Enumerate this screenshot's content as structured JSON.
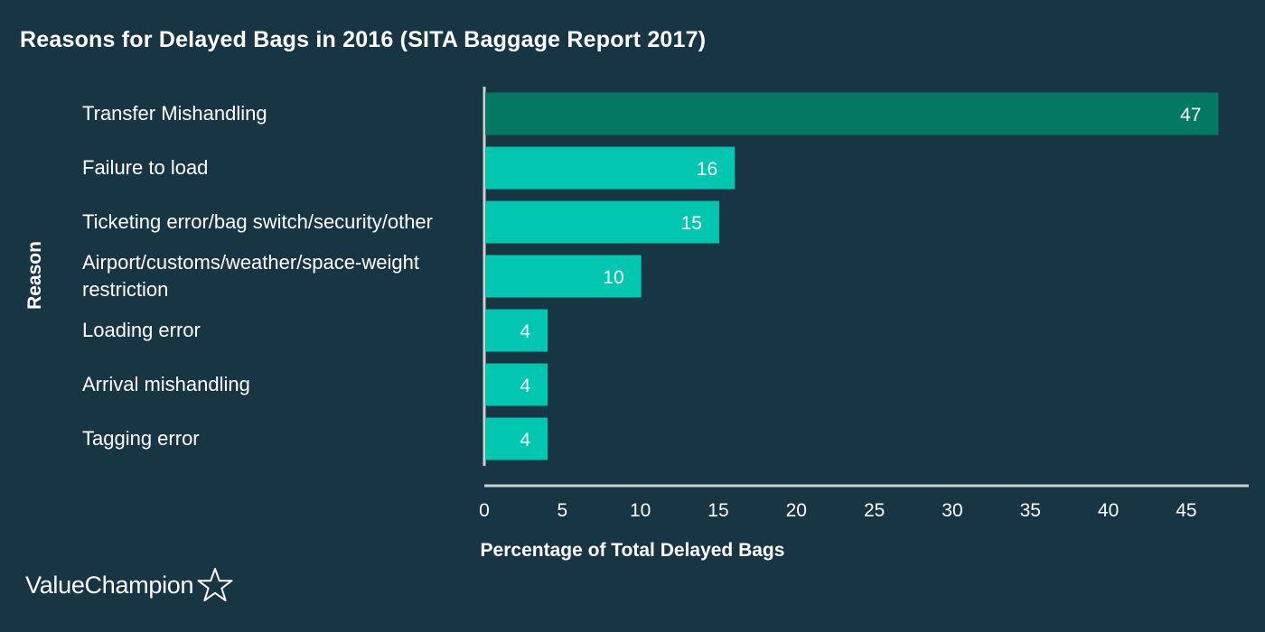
{
  "chart_data": {
    "type": "bar",
    "orientation": "horizontal",
    "title": "Reasons for Delayed Bags in 2016 (SITA Baggage Report 2017)",
    "xlabel": "Percentage of Total Delayed Bags",
    "ylabel": "Reason",
    "categories": [
      "Transfer Mishandling",
      "Failure to load",
      "Ticketing error/bag switch/security/other",
      "Airport/customs/weather/space-weight restriction",
      "Loading error",
      "Arrival mishandling",
      "Tagging error"
    ],
    "values": [
      47,
      16,
      15,
      10,
      4,
      4,
      4
    ],
    "data_labels": [
      "47",
      "16",
      "15",
      "10",
      "4",
      "4",
      "4"
    ],
    "xlim": [
      0,
      49
    ],
    "xticks": [
      0,
      5,
      10,
      15,
      20,
      25,
      30,
      35,
      40,
      45
    ],
    "grid": false,
    "colors": {
      "background": "#173543",
      "highlight_bar": "#037964",
      "bar": "#01c6b0",
      "axis": "#c8d1d4",
      "text": "#ffffff"
    }
  },
  "brand": {
    "logo_text": "ValueChampion",
    "logo_icon": "star-outline-icon"
  }
}
